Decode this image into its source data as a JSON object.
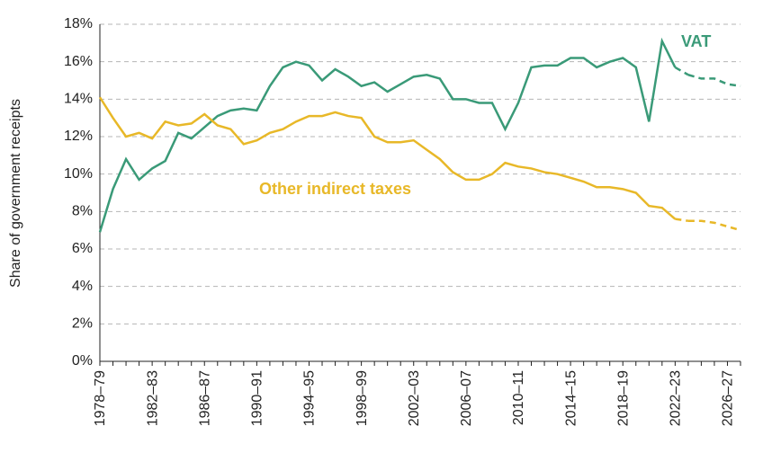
{
  "chart_data": {
    "type": "line",
    "y_label": "Share of government receipts",
    "categories": [
      "1978–79",
      null,
      null,
      null,
      "1982–83",
      null,
      null,
      null,
      "1986–87",
      null,
      null,
      null,
      "1990–91",
      null,
      null,
      null,
      "1994–95",
      null,
      null,
      null,
      "1998–99",
      null,
      null,
      null,
      "2002–03",
      null,
      null,
      null,
      "2006–07",
      null,
      null,
      null,
      "2010–11",
      null,
      null,
      null,
      "2014–15",
      null,
      null,
      null,
      "2018–19",
      null,
      null,
      null,
      "2022–23",
      null,
      null,
      null,
      "2026–27",
      null
    ],
    "series": [
      {
        "name": "VAT",
        "color": "#3a9a78",
        "dashed_from": 45,
        "values": [
          6.9,
          9.2,
          10.8,
          9.7,
          10.3,
          10.7,
          12.2,
          11.9,
          12.5,
          13.1,
          13.4,
          13.5,
          13.4,
          14.7,
          15.7,
          16.0,
          15.8,
          15.0,
          15.6,
          15.2,
          14.7,
          14.9,
          14.4,
          14.8,
          15.2,
          15.3,
          15.1,
          14.0,
          14.0,
          13.8,
          13.8,
          12.4,
          13.8,
          15.7,
          15.8,
          15.8,
          16.2,
          16.2,
          15.7,
          16.0,
          16.2,
          15.7,
          12.8,
          17.1,
          15.7,
          15.3,
          15.1,
          15.1,
          14.8,
          14.7
        ]
      },
      {
        "name": "Other indirect taxes",
        "color": "#e8b828",
        "dashed_from": 45,
        "values": [
          14.1,
          13.0,
          12.0,
          12.2,
          11.9,
          12.8,
          12.6,
          12.7,
          13.2,
          12.6,
          12.4,
          11.6,
          11.8,
          12.2,
          12.4,
          12.8,
          13.1,
          13.1,
          13.3,
          13.1,
          13.0,
          12.0,
          11.7,
          11.7,
          11.8,
          11.3,
          10.8,
          10.1,
          9.7,
          9.7,
          10.0,
          10.6,
          10.4,
          10.3,
          10.1,
          10.0,
          9.8,
          9.6,
          9.3,
          9.3,
          9.2,
          9.0,
          8.3,
          8.2,
          7.6,
          7.5,
          7.5,
          7.4,
          7.2,
          7.0
        ]
      }
    ],
    "ylim": [
      0,
      18
    ],
    "yticks": [
      {
        "value": 0,
        "label": "0%"
      },
      {
        "value": 2,
        "label": "2%"
      },
      {
        "value": 4,
        "label": "4%"
      },
      {
        "value": 6,
        "label": "6%"
      },
      {
        "value": 8,
        "label": "8%"
      },
      {
        "value": 10,
        "label": "10%"
      },
      {
        "value": 12,
        "label": "12%"
      },
      {
        "value": 14,
        "label": "14%"
      },
      {
        "value": 16,
        "label": "16%"
      },
      {
        "value": 18,
        "label": "18%"
      }
    ],
    "grid": true
  }
}
